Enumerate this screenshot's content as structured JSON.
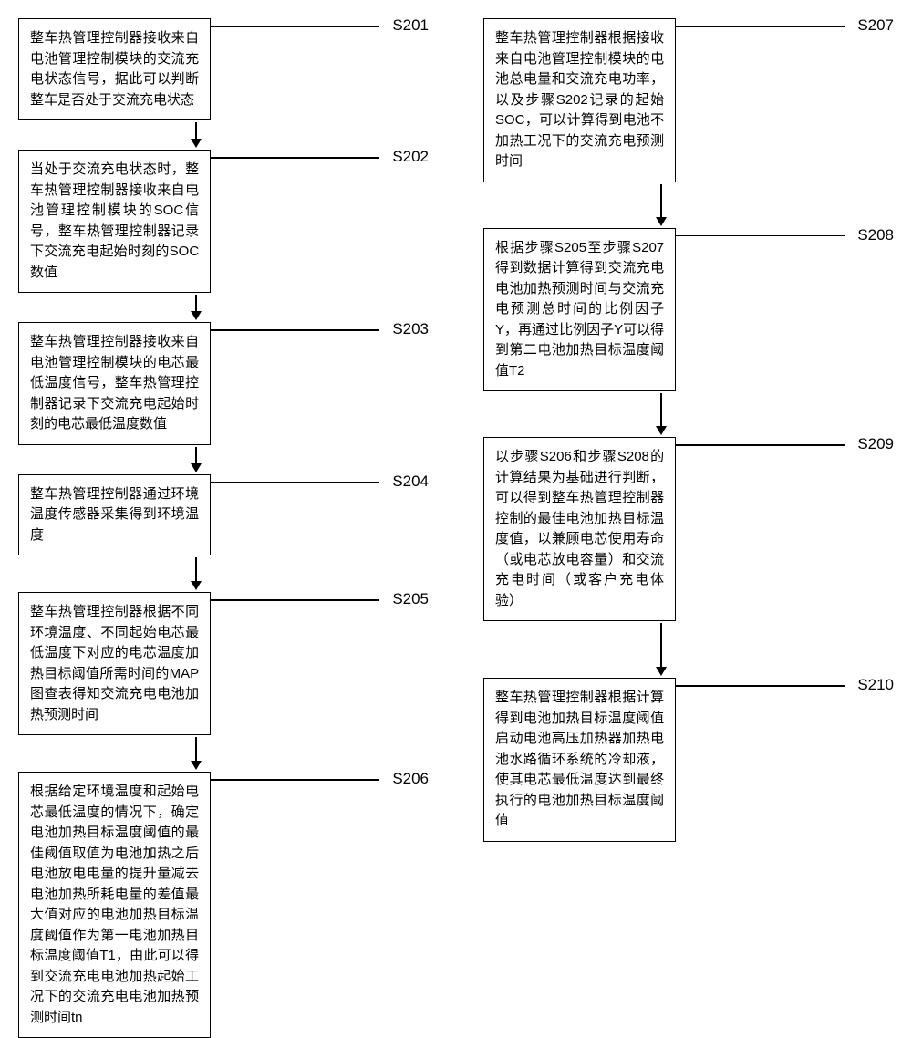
{
  "flowchart": {
    "type": "flowchart",
    "layout": "two-column",
    "box_border_color": "#000000",
    "box_border_width": 1.5,
    "background_color": "#ffffff",
    "font_size": 15,
    "label_font_size": 17,
    "arrow_head_size": 10,
    "columns": [
      {
        "steps": [
          {
            "id": "S201",
            "text": "整车热管理控制器接收来自电池管理控制模块的交流充电状态信号，据此可以判断整车是否处于交流充电状态",
            "arrow_after": 18
          },
          {
            "id": "S202",
            "text": "当处于交流充电状态时，整车热管理控制器接收来自电池管理控制模块的SOC信号，整车热管理控制器记录下交流充电起始时刻的SOC数值",
            "arrow_after": 18
          },
          {
            "id": "S203",
            "text": "整车热管理控制器接收来自电池管理控制模块的电芯最低温度信号，整车热管理控制器记录下交流充电起始时刻的电芯最低温度数值",
            "arrow_after": 18
          },
          {
            "id": "S204",
            "text": "整车热管理控制器通过环境温度传感器采集得到环境温度",
            "arrow_after": 26
          },
          {
            "id": "S205",
            "text": "整车热管理控制器根据不同环境温度、不同起始电芯最低温度下对应的电芯温度加热目标阈值所需时间的MAP图查表得知交流充电电池加热预测时间",
            "arrow_after": 26
          },
          {
            "id": "S206",
            "text": "根据给定环境温度和起始电芯最低温度的情况下，确定电池加热目标温度阈值的最佳阈值取值为电池加热之后电池放电电量的提升量减去电池加热所耗电量的差值最大值对应的电池加热目标温度阈值作为第一电池加热目标温度阈值T1，由此可以得到交流充电电池加热起始工况下的交流充电电池加热预测时间tn",
            "arrow_after": 0
          }
        ]
      },
      {
        "steps": [
          {
            "id": "S207",
            "text": "整车热管理控制器根据接收来自电池管理控制模块的电池总电量和交流充电功率，以及步骤S202记录的起始SOC，可以计算得到电池不加热工况下的交流充电预测时间",
            "arrow_after": 36
          },
          {
            "id": "S208",
            "text": "根据步骤S205至步骤S207得到数据计算得到交流充电电池加热预测时间与交流充电预测总时间的比例因子Y，再通过比例因子Y可以得到第二电池加热目标温度阈值T2",
            "arrow_after": 36
          },
          {
            "id": "S209",
            "text": "以步骤S206和步骤S208的计算结果为基础进行判断，可以得到整车热管理控制器控制的最佳电池加热目标温度值，以兼顾电芯使用寿命（或电芯放电容量）和交流充电时间（或客户充电体验）",
            "arrow_after": 48
          },
          {
            "id": "S210",
            "text": "整车热管理控制器根据计算得到电池加热目标温度阈值启动电池高压加热器加热电池水路循环系统的冷却液，使其电芯最低温度达到最终执行的电池加热目标温度阈值",
            "arrow_after": 0
          }
        ]
      }
    ]
  }
}
